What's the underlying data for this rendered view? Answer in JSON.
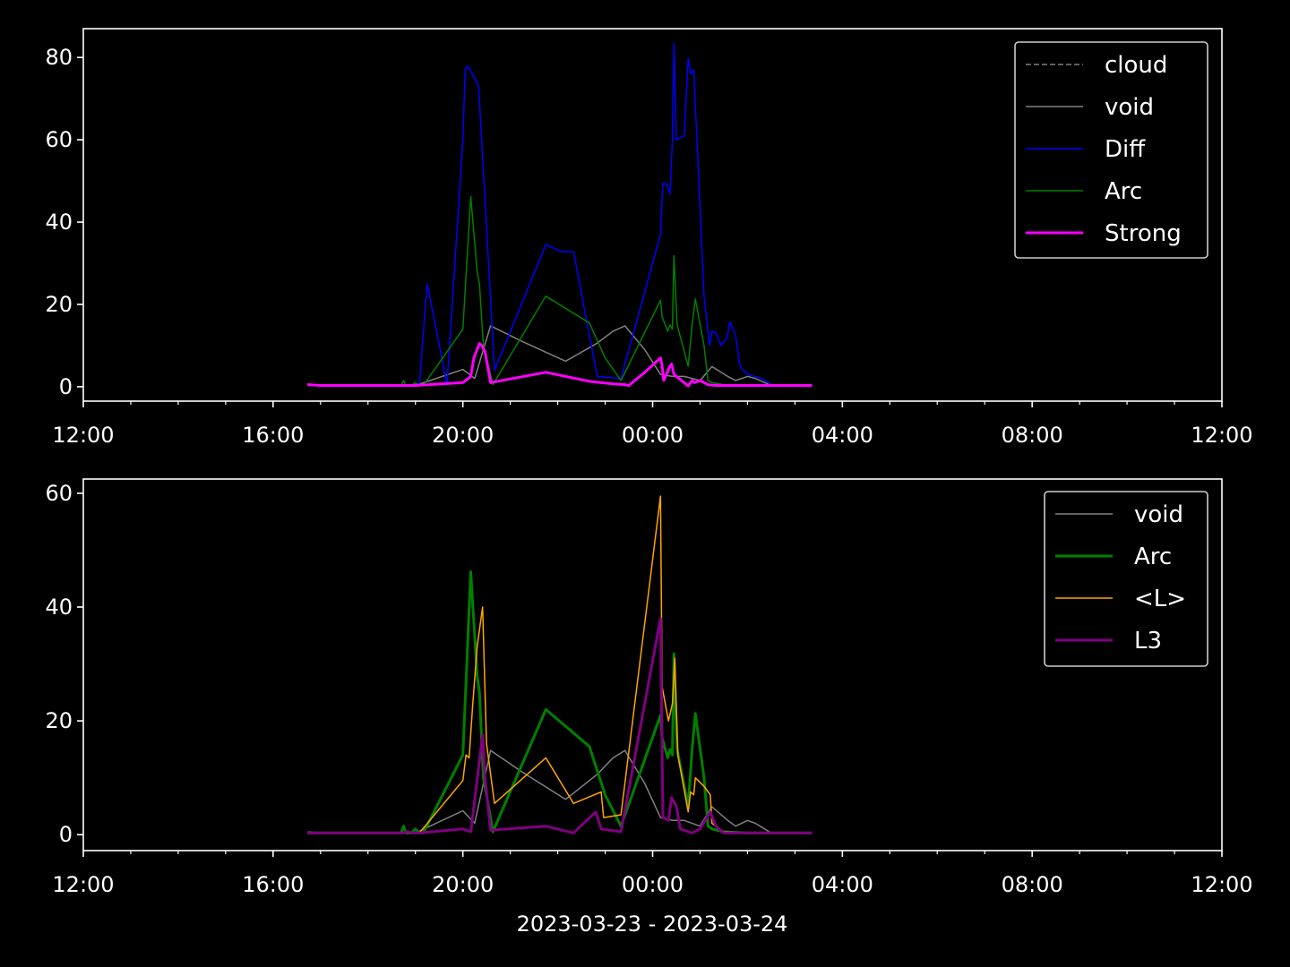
{
  "figure": {
    "background": "#000000",
    "foreground": "#ffffff",
    "xlabel": "2023-03-23 - 2023-03-24"
  },
  "chart_data": [
    {
      "type": "line",
      "xlim": [
        "2023-03-23 12:00",
        "2023-03-24 12:00"
      ],
      "ylim": [
        -3.5,
        87
      ],
      "xticks": [
        "12:00",
        "16:00",
        "20:00",
        "00:00",
        "04:00",
        "08:00",
        "12:00"
      ],
      "yticks": [
        0,
        20,
        40,
        60,
        80
      ],
      "grid": false,
      "legend_position": "top-right",
      "series": [
        {
          "name": "cloud",
          "color": "#808080",
          "style": "dashed",
          "width": 1.5,
          "x": [],
          "y": []
        },
        {
          "name": "void",
          "color": "#808080",
          "style": "solid",
          "width": 1.5,
          "x": [
            "2023-03-23 16:45",
            "2023-03-23 17:00",
            "2023-03-23 19:00",
            "2023-03-23 20:00",
            "2023-03-23 20:15",
            "2023-03-23 20:35",
            "2023-03-23 21:15",
            "2023-03-23 22:10",
            "2023-03-23 22:50",
            "2023-03-23 23:10",
            "2023-03-23 23:25",
            "2023-03-23 23:50",
            "2023-03-24 00:10",
            "2023-03-24 00:25",
            "2023-03-24 00:40",
            "2023-03-24 01:00",
            "2023-03-24 01:15",
            "2023-03-24 01:35",
            "2023-03-24 01:45",
            "2023-03-24 02:00",
            "2023-03-24 02:10",
            "2023-03-24 02:30",
            "2023-03-24 03:20"
          ],
          "y": [
            0.5,
            0.3,
            0.3,
            4.2,
            2.0,
            14.8,
            11.0,
            6.2,
            10.6,
            13.5,
            14.8,
            9.0,
            3.0,
            2.5,
            2.5,
            1.5,
            4.9,
            2.5,
            1.5,
            2.5,
            2.0,
            0.3,
            0.3
          ]
        },
        {
          "name": "Diff",
          "color": "#0000ff",
          "style": "solid",
          "width": 1.5,
          "x": [
            "2023-03-23 16:45",
            "2023-03-23 18:45",
            "2023-03-23 18:55",
            "2023-03-23 19:05",
            "2023-03-23 19:15",
            "2023-03-23 19:40",
            "2023-03-23 20:00",
            "2023-03-23 20:03",
            "2023-03-23 20:06",
            "2023-03-23 20:12",
            "2023-03-23 20:20",
            "2023-03-23 20:40",
            "2023-03-23 21:45",
            "2023-03-23 22:05",
            "2023-03-23 22:20",
            "2023-03-23 22:50",
            "2023-03-23 23:20",
            "2023-03-24 00:10",
            "2023-03-24 00:13",
            "2023-03-24 00:19",
            "2023-03-24 00:22",
            "2023-03-24 00:25",
            "2023-03-24 00:27",
            "2023-03-24 00:30",
            "2023-03-24 00:40",
            "2023-03-24 00:45",
            "2023-03-24 00:48",
            "2023-03-24 00:52",
            "2023-03-24 01:05",
            "2023-03-24 01:12",
            "2023-03-24 01:15",
            "2023-03-24 01:20",
            "2023-03-24 01:27",
            "2023-03-24 01:34",
            "2023-03-24 01:38",
            "2023-03-24 01:45",
            "2023-03-24 01:50",
            "2023-03-24 01:52",
            "2023-03-24 02:00",
            "2023-03-24 02:18",
            "2023-03-24 02:30",
            "2023-03-24 03:20"
          ],
          "y": [
            0.3,
            0.3,
            0.3,
            0.5,
            25.0,
            0.5,
            60.0,
            77.0,
            78.0,
            76.0,
            73.0,
            4.0,
            34.5,
            32.8,
            32.8,
            2.5,
            2.0,
            37.0,
            49.5,
            49.0,
            46.8,
            60.0,
            83.5,
            60.0,
            61.0,
            79.8,
            76.0,
            77.0,
            22.0,
            10.0,
            13.5,
            13.0,
            10.0,
            12.0,
            15.8,
            12.3,
            5.5,
            4.5,
            3.0,
            2.0,
            0.5,
            0.3
          ]
        },
        {
          "name": "Arc",
          "color": "#008000",
          "style": "solid",
          "width": 1.5,
          "x": [
            "2023-03-23 16:45",
            "2023-03-23 18:42",
            "2023-03-23 18:45",
            "2023-03-23 18:48",
            "2023-03-23 18:55",
            "2023-03-23 19:00",
            "2023-03-23 19:05",
            "2023-03-23 19:10",
            "2023-03-23 20:00",
            "2023-03-23 20:10",
            "2023-03-23 20:18",
            "2023-03-23 20:21",
            "2023-03-23 20:26",
            "2023-03-23 20:35",
            "2023-03-23 20:38",
            "2023-03-23 21:45",
            "2023-03-23 22:40",
            "2023-03-23 23:00",
            "2023-03-23 23:20",
            "2023-03-24 00:10",
            "2023-03-24 00:12",
            "2023-03-24 00:19",
            "2023-03-24 00:22",
            "2023-03-24 00:25",
            "2023-03-24 00:27",
            "2023-03-24 00:31",
            "2023-03-24 00:45",
            "2023-03-24 00:50",
            "2023-03-24 00:54",
            "2023-03-24 01:05",
            "2023-03-24 01:10",
            "2023-03-24 01:15",
            "2023-03-24 01:30",
            "2023-03-24 02:00",
            "2023-03-24 03:20"
          ],
          "y": [
            0.3,
            0.3,
            1.5,
            0.3,
            0.3,
            1.0,
            0.3,
            0.3,
            14.0,
            46.2,
            28.0,
            25.0,
            10.0,
            3.0,
            0.5,
            22.0,
            15.5,
            7.0,
            1.5,
            21.0,
            17.0,
            13.5,
            15.0,
            14.0,
            31.8,
            15.0,
            5.0,
            15.0,
            21.3,
            10.0,
            1.5,
            1.0,
            0.5,
            0.3,
            0.3
          ]
        },
        {
          "name": "Strong",
          "color": "#ff00ff",
          "style": "solid",
          "width": 3,
          "x": [
            "2023-03-23 16:45",
            "2023-03-23 17:00",
            "2023-03-23 19:00",
            "2023-03-23 20:00",
            "2023-03-23 20:10",
            "2023-03-23 20:14",
            "2023-03-23 20:21",
            "2023-03-23 20:24",
            "2023-03-23 20:28",
            "2023-03-23 20:35",
            "2023-03-23 21:45",
            "2023-03-23 22:40",
            "2023-03-23 23:10",
            "2023-03-23 23:25",
            "2023-03-23 23:30",
            "2023-03-23 23:50",
            "2023-03-24 00:10",
            "2023-03-24 00:12",
            "2023-03-24 00:14",
            "2023-03-24 00:22",
            "2023-03-24 00:24",
            "2023-03-24 00:27",
            "2023-03-24 00:30",
            "2023-03-24 00:45",
            "2023-03-24 00:50",
            "2023-03-24 00:53",
            "2023-03-24 01:00",
            "2023-03-24 01:10",
            "2023-03-24 01:20",
            "2023-03-24 03:20"
          ],
          "y": [
            0.5,
            0.3,
            0.3,
            1.0,
            2.5,
            7.0,
            10.5,
            10.0,
            8.5,
            1.0,
            3.5,
            1.3,
            0.7,
            0.5,
            0.3,
            3.5,
            7.0,
            5.0,
            1.5,
            5.0,
            5.5,
            3.0,
            2.5,
            0.2,
            1.5,
            1.0,
            1.5,
            0.5,
            0.3,
            0.3
          ]
        }
      ]
    },
    {
      "type": "line",
      "xlim": [
        "2023-03-23 12:00",
        "2023-03-24 12:00"
      ],
      "ylim": [
        -2.8,
        62.5
      ],
      "xticks": [
        "12:00",
        "16:00",
        "20:00",
        "00:00",
        "04:00",
        "08:00",
        "12:00"
      ],
      "yticks": [
        0,
        20,
        40,
        60
      ],
      "xlabel": "2023-03-23 - 2023-03-24",
      "grid": false,
      "legend_position": "top-right",
      "series": [
        {
          "name": "void",
          "color": "#808080",
          "style": "solid",
          "width": 1.5,
          "x": [
            "2023-03-23 16:45",
            "2023-03-23 17:00",
            "2023-03-23 19:00",
            "2023-03-23 20:00",
            "2023-03-23 20:15",
            "2023-03-23 20:35",
            "2023-03-23 21:15",
            "2023-03-23 22:10",
            "2023-03-23 22:50",
            "2023-03-23 23:10",
            "2023-03-23 23:25",
            "2023-03-23 23:50",
            "2023-03-24 00:10",
            "2023-03-24 00:25",
            "2023-03-24 00:40",
            "2023-03-24 01:00",
            "2023-03-24 01:15",
            "2023-03-24 01:35",
            "2023-03-24 01:45",
            "2023-03-24 02:00",
            "2023-03-24 02:10",
            "2023-03-24 02:30",
            "2023-03-24 03:20"
          ],
          "y": [
            0.5,
            0.3,
            0.3,
            4.2,
            2.0,
            14.8,
            11.0,
            6.2,
            10.6,
            13.5,
            14.8,
            9.0,
            3.0,
            2.5,
            2.5,
            1.5,
            4.9,
            2.5,
            1.5,
            2.5,
            2.0,
            0.3,
            0.3
          ]
        },
        {
          "name": "Arc",
          "color": "#008000",
          "style": "solid",
          "width": 3,
          "x": [
            "2023-03-23 16:45",
            "2023-03-23 18:42",
            "2023-03-23 18:45",
            "2023-03-23 18:48",
            "2023-03-23 18:55",
            "2023-03-23 19:00",
            "2023-03-23 19:05",
            "2023-03-23 19:10",
            "2023-03-23 20:00",
            "2023-03-23 20:10",
            "2023-03-23 20:18",
            "2023-03-23 20:21",
            "2023-03-23 20:26",
            "2023-03-23 20:35",
            "2023-03-23 20:38",
            "2023-03-23 21:45",
            "2023-03-23 22:40",
            "2023-03-23 23:00",
            "2023-03-23 23:20",
            "2023-03-24 00:10",
            "2023-03-24 00:12",
            "2023-03-24 00:19",
            "2023-03-24 00:22",
            "2023-03-24 00:25",
            "2023-03-24 00:27",
            "2023-03-24 00:31",
            "2023-03-24 00:45",
            "2023-03-24 00:50",
            "2023-03-24 00:54",
            "2023-03-24 01:05",
            "2023-03-24 01:10",
            "2023-03-24 01:15",
            "2023-03-24 01:30",
            "2023-03-24 02:00",
            "2023-03-24 03:20"
          ],
          "y": [
            0.3,
            0.3,
            1.5,
            0.3,
            0.3,
            1.0,
            0.3,
            0.3,
            14.0,
            46.2,
            28.0,
            25.0,
            10.0,
            3.0,
            0.5,
            22.0,
            15.5,
            7.0,
            1.5,
            21.0,
            17.0,
            13.5,
            15.0,
            14.0,
            31.8,
            15.0,
            5.0,
            15.0,
            21.3,
            10.0,
            1.5,
            1.0,
            0.5,
            0.3,
            0.3
          ]
        },
        {
          "name": "<L>",
          "color": "#ffa500",
          "style": "solid",
          "width": 1.5,
          "x": [
            "2023-03-23 16:45",
            "2023-03-23 19:05",
            "2023-03-23 20:00",
            "2023-03-23 20:04",
            "2023-03-23 20:08",
            "2023-03-23 20:12",
            "2023-03-23 20:18",
            "2023-03-23 20:25",
            "2023-03-23 20:30",
            "2023-03-23 20:40",
            "2023-03-23 21:45",
            "2023-03-23 22:20",
            "2023-03-23 22:55",
            "2023-03-23 22:58",
            "2023-03-23 23:20",
            "2023-03-24 00:10",
            "2023-03-24 00:12",
            "2023-03-24 00:20",
            "2023-03-24 00:25",
            "2023-03-24 00:28",
            "2023-03-24 00:32",
            "2023-03-24 00:45",
            "2023-03-24 00:48",
            "2023-03-24 00:52",
            "2023-03-24 00:54",
            "2023-03-24 01:05",
            "2023-03-24 01:13",
            "2023-03-24 01:15",
            "2023-03-24 01:30",
            "2023-03-24 02:00",
            "2023-03-24 03:20"
          ],
          "y": [
            0.3,
            0.3,
            9.5,
            14.0,
            13.5,
            22.0,
            33.0,
            40.0,
            16.0,
            5.5,
            13.5,
            5.5,
            7.5,
            3.0,
            3.5,
            59.5,
            26.0,
            20.0,
            23.0,
            31.0,
            14.0,
            4.0,
            7.5,
            7.0,
            10.0,
            8.5,
            7.0,
            2.0,
            0.5,
            0.3,
            0.3
          ]
        },
        {
          "name": "L3",
          "color": "#800080",
          "style": "solid",
          "width": 3,
          "x": [
            "2023-03-23 16:45",
            "2023-03-23 18:45",
            "2023-03-23 18:50",
            "2023-03-23 18:55",
            "2023-03-23 19:05",
            "2023-03-23 20:00",
            "2023-03-23 20:10",
            "2023-03-23 20:25",
            "2023-03-23 20:28",
            "2023-03-23 20:35",
            "2023-03-23 21:45",
            "2023-03-23 22:20",
            "2023-03-23 22:48",
            "2023-03-23 22:55",
            "2023-03-23 23:20",
            "2023-03-24 00:10",
            "2023-03-24 00:13",
            "2023-03-24 00:20",
            "2023-03-24 00:24",
            "2023-03-24 00:30",
            "2023-03-24 00:35",
            "2023-03-24 00:50",
            "2023-03-24 01:00",
            "2023-03-24 01:13",
            "2023-03-24 01:20",
            "2023-03-24 01:30",
            "2023-03-24 03:20"
          ],
          "y": [
            0.3,
            0.3,
            0.5,
            0.3,
            0.3,
            1.0,
            0.5,
            17.5,
            10.0,
            0.8,
            1.5,
            0.3,
            4.0,
            1.0,
            0.5,
            38.0,
            3.0,
            2.5,
            6.5,
            5.0,
            1.0,
            0.3,
            1.0,
            4.0,
            1.5,
            0.3,
            0.3
          ]
        }
      ]
    }
  ]
}
